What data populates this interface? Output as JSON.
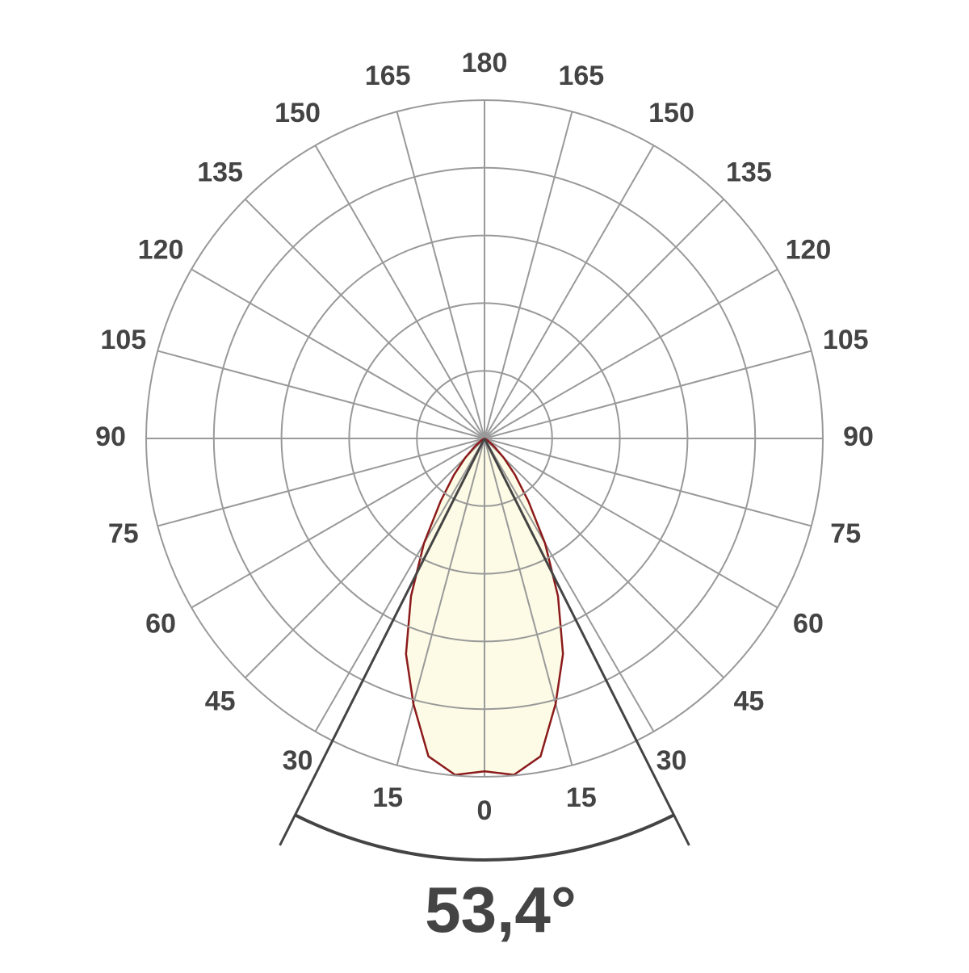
{
  "chart_data": {
    "type": "polar",
    "theta": [
      0,
      5,
      10,
      15,
      20,
      25,
      30,
      35,
      40,
      45,
      50,
      60,
      70,
      80,
      90
    ],
    "values": [
      4.92,
      4.99,
      4.77,
      4.06,
      3.39,
      2.57,
      1.79,
      1.13,
      0.7,
      0.4,
      0.2,
      0.05,
      0,
      0,
      0
    ],
    "color": "#8b1a1a",
    "fill": "#fdfbe6",
    "rlim": [
      0,
      5
    ],
    "rticks": [
      1,
      2,
      3,
      4,
      5
    ],
    "thetaticks": [
      0,
      15,
      30,
      45,
      60,
      75,
      90,
      105,
      120,
      135,
      150,
      165,
      180
    ],
    "grid": true,
    "symmetric": true,
    "beam_angle": 53.4,
    "beam_angle_label": "53,4°"
  }
}
